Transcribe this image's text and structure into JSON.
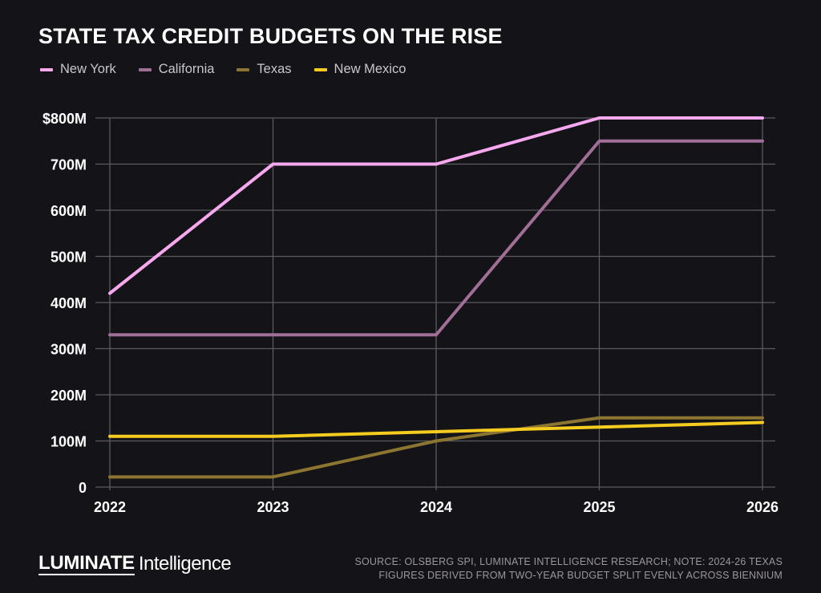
{
  "title": "STATE TAX CREDIT BUDGETS ON THE RISE",
  "brand": {
    "wordmark": "LUMINATE",
    "sub": "Intelligence"
  },
  "source_lines": [
    "SOURCE: OLSBERG SPI, LUMINATE INTELLIGENCE RESEARCH; NOTE: 2024-26 TEXAS",
    "FIGURES DERIVED FROM TWO-YEAR BUDGET SPLIT EVENLY ACROSS BIENNIUM"
  ],
  "chart_data": {
    "type": "line",
    "title": "STATE TAX CREDIT BUDGETS ON THE RISE",
    "x": [
      "2022",
      "2023",
      "2024",
      "2025",
      "2026"
    ],
    "ylim": [
      0,
      800
    ],
    "y_ticks": [
      0,
      100,
      200,
      300,
      400,
      500,
      600,
      700,
      800
    ],
    "y_tick_labels": [
      "0",
      "100M",
      "200M",
      "300M",
      "400M",
      "500M",
      "600M",
      "700M",
      "$800M"
    ],
    "grid": true,
    "legend_position": "top-left",
    "series": [
      {
        "name": "New York",
        "color": "#f7a8ee",
        "values": [
          420,
          700,
          700,
          800,
          800
        ]
      },
      {
        "name": "California",
        "color": "#a06e97",
        "values": [
          330,
          330,
          330,
          750,
          750
        ]
      },
      {
        "name": "Texas",
        "color": "#8c7530",
        "values": [
          22,
          22,
          100,
          150,
          150
        ]
      },
      {
        "name": "New Mexico",
        "color": "#f5cc1f",
        "values": [
          110,
          110,
          120,
          130,
          140
        ]
      }
    ]
  }
}
